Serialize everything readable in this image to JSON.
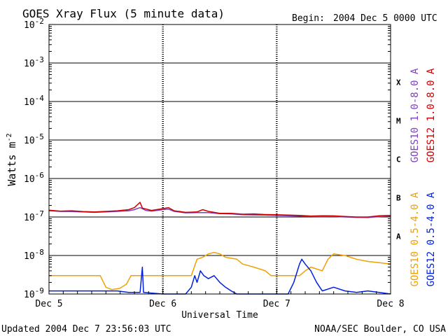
{
  "chart_data": {
    "type": "line",
    "title": "GOES Xray Flux (5 minute data)",
    "begin_label": "Begin:",
    "begin_value": "2004 Dec 5 0000 UTC",
    "xlabel": "Universal Time",
    "ylabel_base": "Watts m",
    "ylabel_exp": "-2",
    "y_scale": "log",
    "ylim": [
      1e-09,
      0.01
    ],
    "x_unit": "days since Dec 5 00:00 UTC",
    "xlim": [
      0,
      3
    ],
    "x_ticks": [
      {
        "x": 0,
        "label": "Dec 5"
      },
      {
        "x": 1,
        "label": "Dec 6"
      },
      {
        "x": 2,
        "label": "Dec 7"
      },
      {
        "x": 3,
        "label": "Dec 8"
      }
    ],
    "y_ticks": [
      {
        "exp": -9,
        "base": "10",
        "sup": "-9"
      },
      {
        "exp": -8,
        "base": "10",
        "sup": "-8"
      },
      {
        "exp": -7,
        "base": "10",
        "sup": "-7"
      },
      {
        "exp": -6,
        "base": "10",
        "sup": "-6"
      },
      {
        "exp": -5,
        "base": "10",
        "sup": "-5"
      },
      {
        "exp": -4,
        "base": "10",
        "sup": "-4"
      },
      {
        "exp": -3,
        "base": "10",
        "sup": "-3"
      },
      {
        "exp": -2,
        "base": "10",
        "sup": "-2"
      }
    ],
    "flare_classes": [
      {
        "label": "A",
        "exp": -8
      },
      {
        "label": "B",
        "exp": -7
      },
      {
        "label": "C",
        "exp": -6
      },
      {
        "label": "M",
        "exp": -5
      },
      {
        "label": "X",
        "exp": -4
      }
    ],
    "grid": "horizontal at decades, dashed vertical at day boundaries",
    "legend_placement": "right, rotated",
    "series": [
      {
        "name": "GOES10 1.0-8.0 A",
        "color": "#7f3fbf",
        "points": [
          [
            0,
            1.45e-07
          ],
          [
            0.1,
            1.4e-07
          ],
          [
            0.2,
            1.38e-07
          ],
          [
            0.3,
            1.35e-07
          ],
          [
            0.4,
            1.32e-07
          ],
          [
            0.5,
            1.35e-07
          ],
          [
            0.6,
            1.4e-07
          ],
          [
            0.7,
            1.45e-07
          ],
          [
            0.75,
            1.55e-07
          ],
          [
            0.8,
            1.75e-07
          ],
          [
            0.85,
            1.48e-07
          ],
          [
            0.9,
            1.42e-07
          ],
          [
            1.0,
            1.55e-07
          ],
          [
            1.05,
            1.6e-07
          ],
          [
            1.1,
            1.4e-07
          ],
          [
            1.2,
            1.28e-07
          ],
          [
            1.3,
            1.3e-07
          ],
          [
            1.4,
            1.3e-07
          ],
          [
            1.5,
            1.22e-07
          ],
          [
            1.6,
            1.2e-07
          ],
          [
            1.7,
            1.15e-07
          ],
          [
            1.8,
            1.13e-07
          ],
          [
            1.9,
            1.12e-07
          ],
          [
            2.0,
            1.1e-07
          ],
          [
            2.1,
            1.08e-07
          ],
          [
            2.2,
            1.05e-07
          ],
          [
            2.3,
            1.03e-07
          ],
          [
            2.4,
            1.02e-07
          ],
          [
            2.5,
            1.03e-07
          ],
          [
            2.6,
            1e-07
          ],
          [
            2.7,
            9.8e-08
          ],
          [
            2.8,
            9.7e-08
          ],
          [
            2.9,
            1.02e-07
          ],
          [
            3.0,
            1.05e-07
          ]
        ]
      },
      {
        "name": "GOES12 1.0-8.0 A",
        "color": "#cc0000",
        "points": [
          [
            0,
            1.5e-07
          ],
          [
            0.1,
            1.42e-07
          ],
          [
            0.2,
            1.45e-07
          ],
          [
            0.3,
            1.38e-07
          ],
          [
            0.4,
            1.36e-07
          ],
          [
            0.5,
            1.4e-07
          ],
          [
            0.6,
            1.45e-07
          ],
          [
            0.7,
            1.55e-07
          ],
          [
            0.75,
            1.75e-07
          ],
          [
            0.8,
            2.4e-07
          ],
          [
            0.82,
            1.7e-07
          ],
          [
            0.9,
            1.48e-07
          ],
          [
            1.0,
            1.65e-07
          ],
          [
            1.05,
            1.75e-07
          ],
          [
            1.1,
            1.45e-07
          ],
          [
            1.2,
            1.32e-07
          ],
          [
            1.3,
            1.35e-07
          ],
          [
            1.35,
            1.55e-07
          ],
          [
            1.4,
            1.4e-07
          ],
          [
            1.5,
            1.25e-07
          ],
          [
            1.6,
            1.25e-07
          ],
          [
            1.7,
            1.18e-07
          ],
          [
            1.8,
            1.2e-07
          ],
          [
            1.9,
            1.16e-07
          ],
          [
            2.0,
            1.15e-07
          ],
          [
            2.1,
            1.12e-07
          ],
          [
            2.2,
            1.1e-07
          ],
          [
            2.3,
            1.06e-07
          ],
          [
            2.4,
            1.08e-07
          ],
          [
            2.5,
            1.07e-07
          ],
          [
            2.6,
            1.03e-07
          ],
          [
            2.7,
            1e-07
          ],
          [
            2.8,
            1e-07
          ],
          [
            2.9,
            1.08e-07
          ],
          [
            3.0,
            1.1e-07
          ]
        ]
      },
      {
        "name": "GOES10 0.5-4.0 A",
        "color": "#f0a000",
        "points": [
          [
            0,
            3e-09
          ],
          [
            0.45,
            3e-09
          ],
          [
            0.5,
            1.5e-09
          ],
          [
            0.55,
            1.3e-09
          ],
          [
            0.62,
            1.4e-09
          ],
          [
            0.68,
            1.8e-09
          ],
          [
            0.72,
            3e-09
          ],
          [
            1.0,
            3e-09
          ],
          [
            1.1,
            3e-09
          ],
          [
            1.2,
            3e-09
          ],
          [
            1.25,
            3e-09
          ],
          [
            1.3,
            8e-09
          ],
          [
            1.35,
            9e-09
          ],
          [
            1.4,
            1.1e-08
          ],
          [
            1.45,
            1.2e-08
          ],
          [
            1.5,
            1.1e-08
          ],
          [
            1.55,
            9e-09
          ],
          [
            1.65,
            8e-09
          ],
          [
            1.7,
            6e-09
          ],
          [
            1.8,
            5e-09
          ],
          [
            1.9,
            4e-09
          ],
          [
            1.95,
            3e-09
          ],
          [
            2.2,
            3e-09
          ],
          [
            2.25,
            4e-09
          ],
          [
            2.3,
            5e-09
          ],
          [
            2.4,
            4e-09
          ],
          [
            2.45,
            8e-09
          ],
          [
            2.5,
            1.1e-08
          ],
          [
            2.6,
            1e-08
          ],
          [
            2.7,
            8e-09
          ],
          [
            2.8,
            7e-09
          ],
          [
            2.9,
            6.5e-09
          ],
          [
            3.0,
            6e-09
          ]
        ]
      },
      {
        "name": "GOES12 0.5-4.0 A",
        "color": "#0020e0",
        "points": [
          [
            0,
            1.2e-09
          ],
          [
            0.6,
            1.2e-09
          ],
          [
            0.7,
            1.1e-09
          ],
          [
            0.8,
            1.1e-09
          ],
          [
            0.82,
            5e-09
          ],
          [
            0.83,
            1.1e-09
          ],
          [
            1.0,
            1e-09
          ],
          [
            1.2,
            1e-09
          ],
          [
            1.25,
            1.5e-09
          ],
          [
            1.28,
            3e-09
          ],
          [
            1.3,
            2e-09
          ],
          [
            1.33,
            4e-09
          ],
          [
            1.36,
            3e-09
          ],
          [
            1.4,
            2.5e-09
          ],
          [
            1.45,
            3e-09
          ],
          [
            1.5,
            2e-09
          ],
          [
            1.55,
            1.5e-09
          ],
          [
            1.6,
            1.2e-09
          ],
          [
            1.65,
            1e-09
          ],
          [
            1.8,
            1e-09
          ],
          [
            1.9,
            1e-09
          ],
          [
            2.0,
            1e-09
          ],
          [
            2.1,
            1e-09
          ],
          [
            2.15,
            2e-09
          ],
          [
            2.2,
            6e-09
          ],
          [
            2.22,
            8e-09
          ],
          [
            2.25,
            6e-09
          ],
          [
            2.3,
            4e-09
          ],
          [
            2.35,
            2e-09
          ],
          [
            2.4,
            1.2e-09
          ],
          [
            2.5,
            1.5e-09
          ],
          [
            2.6,
            1.2e-09
          ],
          [
            2.7,
            1.1e-09
          ],
          [
            2.8,
            1.2e-09
          ],
          [
            2.9,
            1.1e-09
          ],
          [
            3.0,
            1e-09
          ]
        ]
      }
    ]
  },
  "footer": {
    "updated": "Updated 2004 Dec  7 23:56:03 UTC",
    "credit": "NOAA/SEC Boulder, CO USA"
  }
}
